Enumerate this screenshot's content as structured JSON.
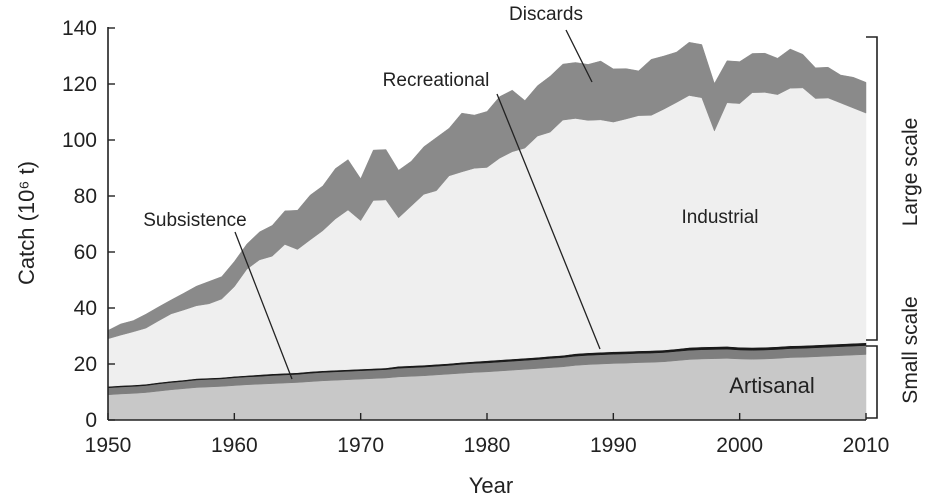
{
  "chart_data": {
    "type": "area",
    "stacked": true,
    "xlabel": "Year",
    "ylabel": "Catch (10⁶ t)",
    "xlim": [
      1950,
      2010
    ],
    "ylim": [
      0,
      140
    ],
    "x_ticks": [
      1950,
      1960,
      1970,
      1980,
      1990,
      2000,
      2010
    ],
    "y_ticks": [
      0,
      20,
      40,
      60,
      80,
      100,
      120,
      140
    ],
    "x": [
      1950,
      1951,
      1952,
      1953,
      1954,
      1955,
      1956,
      1957,
      1958,
      1959,
      1960,
      1961,
      1962,
      1963,
      1964,
      1965,
      1966,
      1967,
      1968,
      1969,
      1970,
      1971,
      1972,
      1973,
      1974,
      1975,
      1976,
      1977,
      1978,
      1979,
      1980,
      1981,
      1982,
      1983,
      1984,
      1985,
      1986,
      1987,
      1988,
      1989,
      1990,
      1991,
      1992,
      1993,
      1994,
      1995,
      1996,
      1997,
      1998,
      1999,
      2000,
      2001,
      2002,
      2003,
      2004,
      2005,
      2006,
      2007,
      2008,
      2009,
      2010
    ],
    "series": [
      {
        "name": "Artisanal",
        "color": "#c8c8c8",
        "values": [
          9,
          9.3,
          9.5,
          9.8,
          10.3,
          10.8,
          11.2,
          11.6,
          11.8,
          12,
          12.3,
          12.6,
          12.8,
          13,
          13.2,
          13.4,
          13.7,
          14,
          14.2,
          14.4,
          14.6,
          14.8,
          15,
          15.4,
          15.6,
          15.8,
          16.1,
          16.4,
          16.7,
          17,
          17.2,
          17.5,
          17.8,
          18.1,
          18.4,
          18.7,
          19,
          19.5,
          19.8,
          20,
          20.2,
          20.3,
          20.5,
          20.6,
          20.8,
          21.2,
          21.6,
          21.8,
          21.9,
          22,
          21.8,
          21.7,
          21.8,
          22,
          22.3,
          22.4,
          22.6,
          22.8,
          23,
          23.2,
          23.4
        ]
      },
      {
        "name": "Subsistence",
        "color": "#7e7e7e",
        "values": [
          2.5,
          2.5,
          2.5,
          2.5,
          2.6,
          2.6,
          2.6,
          2.7,
          2.7,
          2.7,
          2.8,
          2.8,
          2.8,
          2.9,
          2.9,
          2.9,
          3,
          3,
          3,
          3,
          3,
          3,
          3,
          3.1,
          3.1,
          3.1,
          3.1,
          3.1,
          3.2,
          3.2,
          3.2,
          3.2,
          3.2,
          3.2,
          3.2,
          3.3,
          3.3,
          3.3,
          3.3,
          3.3,
          3.3,
          3.3,
          3.3,
          3.3,
          3.3,
          3.3,
          3.3,
          3.3,
          3.3,
          3.3,
          3.2,
          3.2,
          3.2,
          3.2,
          3.2,
          3.2,
          3.2,
          3.2,
          3.2,
          3.2,
          3.2
        ]
      },
      {
        "name": "Recreational",
        "color": "#1a1a1a",
        "values": [
          0.5,
          0.5,
          0.5,
          0.5,
          0.5,
          0.5,
          0.5,
          0.5,
          0.5,
          0.5,
          0.5,
          0.5,
          0.6,
          0.6,
          0.6,
          0.6,
          0.6,
          0.6,
          0.6,
          0.6,
          0.6,
          0.6,
          0.6,
          0.7,
          0.7,
          0.7,
          0.7,
          0.7,
          0.7,
          0.7,
          0.8,
          0.8,
          0.8,
          0.8,
          0.8,
          0.8,
          0.8,
          0.9,
          0.9,
          0.9,
          0.9,
          0.9,
          0.9,
          0.9,
          0.9,
          0.9,
          1,
          1,
          1,
          1,
          1,
          1,
          1,
          1,
          1,
          1,
          1,
          1,
          1,
          1,
          1
        ]
      },
      {
        "name": "Industrial",
        "color": "#efefef",
        "values": [
          17,
          18,
          19,
          20,
          22,
          24,
          25,
          26,
          26.5,
          28,
          32,
          38,
          41,
          42,
          46,
          44,
          47,
          50,
          54,
          57,
          53,
          60,
          60,
          53,
          57,
          61,
          62,
          67,
          68,
          69,
          69,
          72,
          74,
          75,
          79,
          80,
          84,
          84,
          83,
          83,
          82,
          83,
          84,
          84,
          86,
          88,
          90,
          89,
          77,
          87,
          87,
          91,
          91,
          90,
          92,
          92,
          88,
          88,
          86,
          84,
          82
        ]
      },
      {
        "name": "Discards",
        "color": "#8a8a8a",
        "values": [
          3,
          4,
          4,
          5,
          5,
          5,
          6,
          7,
          8,
          8,
          9,
          9,
          10,
          11,
          12,
          14,
          16,
          16,
          18,
          18,
          15,
          18,
          18,
          17,
          16,
          17,
          19,
          17,
          21,
          19,
          20,
          22,
          22,
          17,
          18,
          20,
          20,
          20,
          20,
          21,
          19,
          18,
          16,
          20,
          19,
          18,
          19,
          19,
          17,
          15,
          15,
          14,
          14,
          13,
          14,
          12,
          11,
          11,
          10,
          11,
          11
        ]
      }
    ],
    "annotations": {
      "discards": "Discards",
      "recreational": "Recreational",
      "subsistence": "Subsistence",
      "industrial": "Industrial",
      "artisanal": "Artisanal"
    },
    "side_labels": {
      "large": "Large scale",
      "small": "Small scale"
    },
    "grid": false
  }
}
